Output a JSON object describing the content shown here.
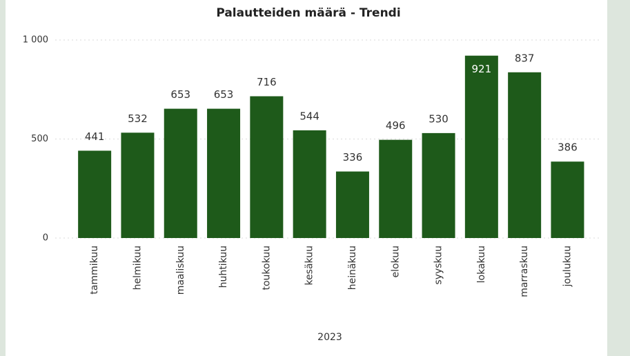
{
  "chart_data": {
    "type": "bar",
    "title": "Palautteiden määrä - Trendi",
    "categories": [
      "tammikuu",
      "helmikuu",
      "maaliskuu",
      "huhtikuu",
      "toukokuu",
      "kesäkuu",
      "heinäkuu",
      "elokuu",
      "syyskuu",
      "lokakuu",
      "marraskuu",
      "joulukuu"
    ],
    "values": [
      441,
      532,
      653,
      653,
      716,
      544,
      336,
      496,
      530,
      921,
      837,
      386
    ],
    "color": "#1e5a1a",
    "x_label": "2023",
    "ylim": [
      0,
      1000
    ],
    "yticks": [
      0,
      500,
      {
        "value": 1000,
        "label": "1 000"
      }
    ],
    "grid": true
  }
}
